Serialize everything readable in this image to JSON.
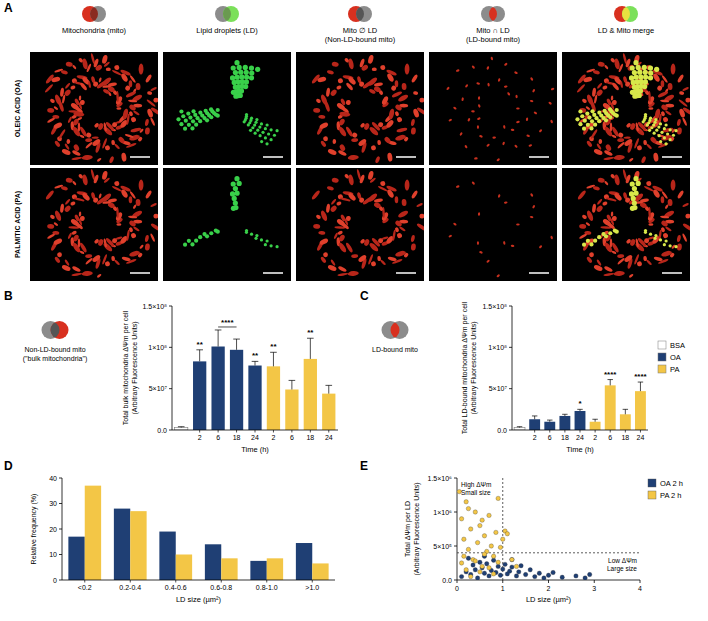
{
  "image_panel": {
    "panel_label": "A",
    "rows": [
      "OLEIC ACID (OA)",
      "PALMITIC ACID (PA)"
    ],
    "columns": [
      {
        "title": [
          "Mitochondria (mito)"
        ]
      },
      {
        "title": [
          "Lipid droplets (LD)"
        ]
      },
      {
        "title": [
          "Mito ∅ LD",
          "(Non-LD-bound mito)"
        ]
      },
      {
        "title": [
          "Mito ∩ LD",
          "(LD-bound mito)"
        ]
      },
      {
        "title": [
          "LD & Mito merge"
        ]
      }
    ]
  },
  "chart_data": [
    {
      "type": "bar",
      "panel_label": "B",
      "subtitle": [
        "Non-LD-bound mito",
        "(\"bulk mitochondria\")"
      ],
      "categories": [
        null,
        "2",
        "6",
        "18",
        "24",
        "2",
        "6",
        "18",
        "24"
      ],
      "values": [
        3000000,
        83000000,
        101000000,
        97000000,
        78000000,
        77000000,
        49000000,
        86000000,
        44000000
      ],
      "errors": [
        1000000,
        14000000,
        20000000,
        13000000,
        5000000,
        17000000,
        11000000,
        25000000,
        10000000
      ],
      "colors": [
        "#ffffff",
        "#1f3f74",
        "#1f3f74",
        "#1f3f74",
        "#1f3f74",
        "#f3c646",
        "#f3c646",
        "#f3c646",
        "#f3c646"
      ],
      "xlabel": "Time (h)",
      "ylabel": [
        "Total bulk mitochondria ΔΨm per cell",
        "(Arbitrary Fluorescence Units)"
      ],
      "ylim": [
        0,
        150000000
      ],
      "yticks": [
        {
          "value": 0,
          "label": "0.0"
        },
        {
          "value": 50000000,
          "label": "5×10⁷"
        },
        {
          "value": 100000000,
          "label": "1×10⁸"
        },
        {
          "value": 150000000,
          "label": "1.5×10⁸"
        }
      ],
      "annotations": [
        {
          "text": "**",
          "category": 1
        },
        {
          "text": "****",
          "categories": [
            2,
            3
          ]
        },
        {
          "text": "**",
          "category": 4
        },
        {
          "text": "**",
          "category": 5
        },
        {
          "text": "**",
          "category": 7
        }
      ]
    },
    {
      "type": "bar",
      "panel_label": "C",
      "subtitle": [
        "LD-bound mito"
      ],
      "categories": [
        null,
        "2",
        "6",
        "18",
        "24",
        "2",
        "6",
        "18",
        "24"
      ],
      "series": [
        {
          "name": "BSA",
          "color": "#ffffff",
          "values": [
            3000000,
            null,
            null,
            null,
            null,
            null,
            null,
            null,
            null
          ],
          "errors": [
            1000000,
            null,
            null,
            null,
            null,
            null,
            null,
            null,
            null
          ]
        },
        {
          "name": "OA",
          "color": "#1f3f74",
          "values": [
            null,
            13000000,
            10000000,
            17000000,
            23000000,
            null,
            null,
            null,
            null
          ],
          "errors": [
            null,
            4000000,
            2000000,
            2000000,
            2000000,
            null,
            null,
            null,
            null
          ]
        },
        {
          "name": "PA",
          "color": "#f3c646",
          "values": [
            null,
            null,
            null,
            null,
            null,
            10000000,
            54000000,
            19000000,
            47000000
          ],
          "errors": [
            null,
            null,
            null,
            null,
            null,
            3000000,
            7000000,
            6000000,
            11000000
          ]
        }
      ],
      "legend": "right",
      "xlabel": "Time (h)",
      "ylabel": [
        "Total LD-bound mitochondria ΔΨm per cell",
        "(Arbitrary Fluorescence Units)"
      ],
      "ylim": [
        0,
        150000000
      ],
      "yticks": [
        {
          "value": 0,
          "label": "0.0"
        },
        {
          "value": 50000000,
          "label": "5×10⁷"
        },
        {
          "value": 100000000,
          "label": "1×10⁸"
        },
        {
          "value": 150000000,
          "label": "1.5×10⁸"
        }
      ],
      "annotations": [
        {
          "text": "*",
          "category": 4
        },
        {
          "text": "****",
          "category": 6
        },
        {
          "text": "****",
          "category": 8
        }
      ]
    },
    {
      "type": "bar",
      "panel_label": "D",
      "categories": [
        "<0.2",
        "0.2-0.4",
        "0.4-0.6",
        "0.6-0.8",
        "0.8-1.0",
        ">1.0"
      ],
      "series": [
        {
          "color": "#1f3f74",
          "values": [
            17,
            28,
            19,
            14,
            7.5,
            14.5
          ]
        },
        {
          "color": "#f3c646",
          "values": [
            37,
            27,
            10,
            8.5,
            8.5,
            6.5
          ]
        }
      ],
      "xlabel": "LD size (µm²)",
      "ylabel": [
        "Relative frequency (%)"
      ],
      "ylim": [
        0,
        40
      ],
      "yticks": [
        0,
        10,
        20,
        30,
        40
      ]
    },
    {
      "type": "scatter",
      "panel_label": "E",
      "xlabel": "LD size (µm²)",
      "ylabel": [
        "Total ΔΨm per LD",
        "(Arbitrary Fluorescence Units)"
      ],
      "xlim": [
        0,
        4
      ],
      "xticks": [
        0,
        1,
        2,
        3,
        4
      ],
      "ylim": [
        0,
        1500000
      ],
      "yticks": [
        {
          "value": 0,
          "label": "0.0"
        },
        {
          "value": 500000,
          "label": "5×10⁵"
        },
        {
          "value": 1000000,
          "label": "1×10⁶"
        },
        {
          "value": 1500000,
          "label": "1.5×10⁶"
        }
      ],
      "reference_lines": {
        "x": 1,
        "y": 400000
      },
      "annotations": [
        [
          "High ΔΨm",
          "Small size"
        ],
        [
          "Low ΔΨm",
          "Large size"
        ]
      ],
      "legend": "right",
      "series": [
        {
          "name": "OA 2 h",
          "color": "#1f3f74",
          "x": [
            0.1,
            0.2,
            0.3,
            0.35,
            0.4,
            0.45,
            0.5,
            0.55,
            0.6,
            0.65,
            0.7,
            0.75,
            0.8,
            0.85,
            0.9,
            0.95,
            1.0,
            1.05,
            1.1,
            1.15,
            1.2,
            1.3,
            1.35,
            1.4,
            1.5,
            1.6,
            1.7,
            1.8,
            1.9,
            2.0,
            2.1,
            2.3,
            2.6,
            2.8,
            2.9,
            0.25,
            0.6,
            1.2
          ],
          "values": [
            50000,
            120000,
            80000,
            220000,
            150000,
            30000,
            260000,
            180000,
            100000,
            240000,
            60000,
            140000,
            290000,
            110000,
            200000,
            70000,
            160000,
            230000,
            90000,
            130000,
            190000,
            60000,
            120000,
            210000,
            80000,
            150000,
            50000,
            100000,
            30000,
            70000,
            110000,
            40000,
            60000,
            30000,
            80000,
            320000,
            350000,
            300000
          ]
        },
        {
          "name": "PA 2 h",
          "color": "#f3c646",
          "x": [
            0.05,
            0.1,
            0.15,
            0.2,
            0.25,
            0.3,
            0.35,
            0.4,
            0.45,
            0.5,
            0.55,
            0.6,
            0.65,
            0.7,
            0.75,
            0.8,
            0.85,
            0.9,
            0.95,
            1.0,
            1.05,
            1.1,
            1.2,
            1.3,
            0.1,
            0.2,
            0.3,
            0.4,
            0.5,
            0.6,
            0.7,
            0.8,
            0.9,
            0.15,
            0.55,
            0.25
          ],
          "values": [
            1300000,
            900000,
            600000,
            1150000,
            450000,
            750000,
            300000,
            1000000,
            550000,
            800000,
            200000,
            650000,
            420000,
            950000,
            500000,
            350000,
            700000,
            1200000,
            480000,
            600000,
            720000,
            680000,
            300000,
            200000,
            250000,
            150000,
            50000,
            280000,
            120000,
            380000,
            180000,
            90000,
            260000,
            350000,
            880000,
            1050000
          ]
        }
      ]
    }
  ]
}
